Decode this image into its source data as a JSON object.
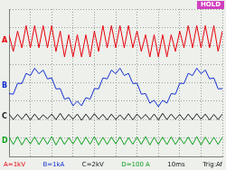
{
  "chart_data": {
    "type": "line",
    "title": "HOLD",
    "x": [
      0,
      0.2,
      0.4,
      0.6,
      0.8,
      1,
      1.2,
      1.4,
      1.6,
      1.8,
      2,
      2.2,
      2.4,
      2.6,
      2.8,
      3,
      3.2,
      3.4,
      3.6,
      3.8,
      4,
      4.2,
      4.4,
      4.6,
      4.8,
      5,
      5.2,
      5.4,
      5.6,
      5.8,
      6,
      6.2,
      6.4,
      6.6,
      6.8,
      7,
      7.2,
      7.4,
      7.6,
      7.8,
      8,
      8.2,
      8.4,
      8.6,
      8.8,
      9,
      9.2,
      9.4,
      9.6,
      9.8,
      10
    ],
    "series": [
      {
        "name": "A",
        "color": "#e8000b",
        "values": [
          6.6,
          5.7,
          6.8,
          5.9,
          7.1,
          5.9,
          7.1,
          5.9,
          7.1,
          5.9,
          7.1,
          5.7,
          6.8,
          5.4,
          6.6,
          5.4,
          6.6,
          5.4,
          6.6,
          5.4,
          6.8,
          5.7,
          7.1,
          5.9,
          7.1,
          5.9,
          7.1,
          5.9,
          7.1,
          5.9,
          6.8,
          5.7,
          6.6,
          5.4,
          6.6,
          5.4,
          6.6,
          5.4,
          6.6,
          5.7,
          6.8,
          5.9,
          7.1,
          5.9,
          7.1,
          5.9,
          7.1,
          5.9,
          7.1,
          5.7,
          6.8
        ]
      },
      {
        "name": "B",
        "color": "#1030d0",
        "values": [
          3.41,
          3.38,
          3.97,
          3.96,
          4.51,
          4.39,
          4.79,
          4.49,
          4.69,
          4.21,
          4.26,
          3.67,
          3.68,
          3.11,
          3.19,
          2.75,
          3.0,
          2.75,
          3.19,
          3.11,
          3.68,
          3.67,
          4.26,
          4.21,
          4.69,
          4.49,
          4.79,
          4.39,
          4.51,
          3.96,
          3.97,
          3.38,
          3.41,
          2.89,
          3.05,
          2.7,
          3.05,
          2.89,
          3.41,
          3.38,
          3.97,
          3.96,
          4.51,
          4.39,
          4.79,
          4.49,
          4.69,
          4.21,
          4.26,
          3.67,
          3.68
        ]
      },
      {
        "name": "C",
        "color": "#202020",
        "values": [
          2.3,
          2.0,
          2.28,
          2.02,
          2.32,
          1.98,
          2.3,
          2.0,
          2.26,
          2.04,
          2.3,
          2.0,
          2.34,
          1.98,
          2.28,
          2.02,
          2.3,
          1.96,
          2.3,
          2.0,
          2.32,
          2.02,
          2.28,
          1.98,
          2.3,
          2.0,
          2.26,
          2.0,
          2.32,
          1.98,
          2.3,
          2.04,
          2.28,
          2.0,
          2.3,
          1.98,
          2.34,
          2.0,
          2.3,
          2.02,
          2.28,
          1.98,
          2.3,
          2.0,
          2.32,
          2.02,
          2.3,
          1.98,
          2.28,
          2.0,
          2.3
        ]
      },
      {
        "name": "D",
        "color": "#10a020",
        "values": [
          1.05,
          0.65,
          1.08,
          0.62,
          1.02,
          0.68,
          1.06,
          0.64,
          1.04,
          0.66,
          1.08,
          0.62,
          1.05,
          0.65,
          1.02,
          0.68,
          1.06,
          0.64,
          1.05,
          0.66,
          1.08,
          0.62,
          1.04,
          0.65,
          1.05,
          0.68,
          1.06,
          0.63,
          1.02,
          0.66,
          1.05,
          0.65,
          1.08,
          0.62,
          1.04,
          0.66,
          1.05,
          0.64,
          1.06,
          0.65,
          1.02,
          0.68,
          1.05,
          0.64,
          1.08,
          0.62,
          1.05,
          0.66,
          1.04,
          0.65,
          1.05
        ]
      }
    ],
    "annotations": [
      {
        "text": "A=1kV",
        "color": "#e8000b"
      },
      {
        "text": "B=1kA",
        "color": "#1030d0"
      },
      {
        "text": "C=2kV",
        "color": "#202020"
      },
      {
        "text": "D=100 A",
        "color": "#10a020"
      },
      {
        "text": "10ms",
        "color": "#202020"
      },
      {
        "text": "Trig:Af",
        "color": "#202020"
      }
    ],
    "xlim": [
      0,
      10
    ],
    "xticks": [
      0,
      1,
      2,
      3,
      4,
      5,
      6,
      7,
      8,
      9,
      10
    ],
    "ylim": [
      0,
      8
    ],
    "yticks": [
      0,
      1,
      2,
      3,
      4,
      5,
      6,
      7,
      8
    ],
    "grid": true,
    "tick_labels": false
  }
}
